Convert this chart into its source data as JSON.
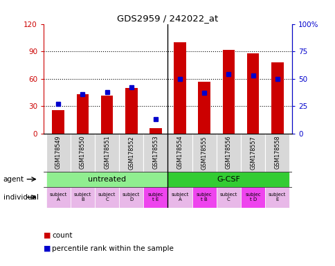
{
  "title": "GDS2959 / 242022_at",
  "samples": [
    "GSM178549",
    "GSM178550",
    "GSM178551",
    "GSM178552",
    "GSM178553",
    "GSM178554",
    "GSM178555",
    "GSM178556",
    "GSM178557",
    "GSM178558"
  ],
  "counts": [
    26,
    43,
    42,
    50,
    6,
    100,
    57,
    92,
    88,
    78
  ],
  "percentile_ranks": [
    27,
    36,
    38,
    42,
    13,
    50,
    37,
    54,
    53,
    50
  ],
  "ylim_left": [
    0,
    120
  ],
  "ylim_right": [
    0,
    100
  ],
  "yticks_left": [
    0,
    30,
    60,
    90,
    120
  ],
  "ytick_labels_left": [
    "0",
    "30",
    "60",
    "90",
    "120"
  ],
  "yticks_right": [
    0,
    25,
    50,
    75,
    100
  ],
  "ytick_labels_right": [
    "0",
    "25",
    "50",
    "75",
    "100%"
  ],
  "groups": [
    {
      "label": "untreated",
      "start": 0,
      "end": 5,
      "color": "#90ee90"
    },
    {
      "label": "G-CSF",
      "start": 5,
      "end": 10,
      "color": "#33cc33"
    }
  ],
  "individuals": [
    {
      "label": "subject\nA",
      "idx": 0,
      "highlighted": false
    },
    {
      "label": "subject\nB",
      "idx": 1,
      "highlighted": false
    },
    {
      "label": "subject\nC",
      "idx": 2,
      "highlighted": false
    },
    {
      "label": "subject\nD",
      "idx": 3,
      "highlighted": false
    },
    {
      "label": "subjec\nt E",
      "idx": 4,
      "highlighted": true
    },
    {
      "label": "subject\nA",
      "idx": 5,
      "highlighted": false
    },
    {
      "label": "subjec\nt B",
      "idx": 6,
      "highlighted": true
    },
    {
      "label": "subject\nC",
      "idx": 7,
      "highlighted": false
    },
    {
      "label": "subjec\nt D",
      "idx": 8,
      "highlighted": true
    },
    {
      "label": "subject\nE",
      "idx": 9,
      "highlighted": false
    }
  ],
  "bar_color": "#cc0000",
  "dot_color": "#0000cc",
  "bar_width": 0.5,
  "legend_count_color": "#cc0000",
  "legend_dot_color": "#0000cc",
  "legend_count_label": "count",
  "legend_percentile_label": "percentile rank within the sample",
  "agent_label": "agent",
  "individual_label": "individual",
  "grid_color": "black",
  "grid_linestyle": "dotted",
  "grid_linewidth": 0.8,
  "tick_label_color_left": "#cc0000",
  "tick_label_color_right": "#0000cc",
  "sample_bg_color": "#d8d8d8",
  "normal_indiv_color": "#e8b8e8",
  "highlight_indiv_color": "#ee44ee"
}
